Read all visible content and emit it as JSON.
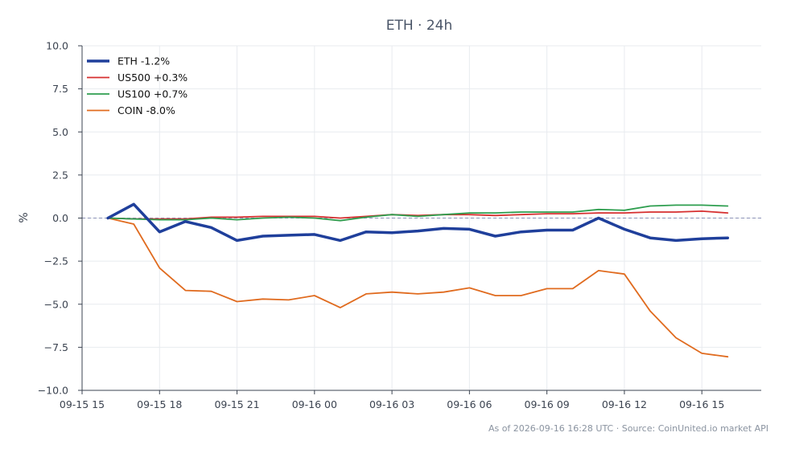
{
  "chart_data": {
    "type": "line",
    "title": "ETH · 24h",
    "ylabel": "%",
    "xlabel": "",
    "ylim": [
      -10,
      10
    ],
    "yticks": [
      10,
      7.5,
      5,
      2.5,
      0,
      -2.5,
      -5,
      -7.5,
      -10
    ],
    "ytick_labels": [
      "10.0",
      "7.5",
      "5.0",
      "2.5",
      "0.0",
      "−2.5",
      "−5.0",
      "−7.5",
      "−10.0"
    ],
    "xlim": [
      -1,
      25.3
    ],
    "xticks": [
      -1,
      2,
      5,
      8,
      11,
      14,
      17,
      20,
      23
    ],
    "xtick_labels": [
      "09-15 15",
      "09-15 18",
      "09-15 21",
      "09-16 00",
      "09-16 03",
      "09-16 06",
      "09-16 09",
      "09-16 12",
      "09-16 15"
    ],
    "x": [
      0,
      1,
      2,
      3,
      4,
      5,
      6,
      7,
      8,
      9,
      10,
      11,
      12,
      13,
      14,
      15,
      16,
      17,
      18,
      19,
      20,
      21,
      22,
      23,
      24
    ],
    "grid": true,
    "zero_line": true,
    "legend_position": "top-left",
    "series": [
      {
        "name": "ETH -1.2%",
        "color": "#1f3f9b",
        "width": 3.5,
        "values": [
          0.0,
          0.8,
          -0.8,
          -0.2,
          -0.55,
          -1.3,
          -1.05,
          -1.0,
          -0.95,
          -1.3,
          -0.8,
          -0.85,
          -0.75,
          -0.6,
          -0.65,
          -1.05,
          -0.8,
          -0.7,
          -0.7,
          0.0,
          -0.65,
          -1.15,
          -1.3,
          -1.2,
          -1.15
        ]
      },
      {
        "name": "US500 +0.3%",
        "color": "#d62f2f",
        "width": 1.8,
        "values": [
          0.0,
          -0.05,
          -0.05,
          -0.05,
          0.05,
          0.05,
          0.1,
          0.1,
          0.1,
          0.0,
          0.1,
          0.2,
          0.15,
          0.2,
          0.2,
          0.15,
          0.2,
          0.25,
          0.25,
          0.3,
          0.3,
          0.35,
          0.35,
          0.4,
          0.3
        ]
      },
      {
        "name": "US100 +0.7%",
        "color": "#2e9e4f",
        "width": 1.8,
        "values": [
          0.0,
          -0.05,
          -0.1,
          -0.1,
          0.0,
          -0.1,
          0.0,
          0.05,
          0.0,
          -0.15,
          0.05,
          0.2,
          0.1,
          0.2,
          0.3,
          0.3,
          0.35,
          0.35,
          0.35,
          0.5,
          0.45,
          0.7,
          0.75,
          0.75,
          0.7
        ]
      },
      {
        "name": "COIN -8.0%",
        "color": "#e06b1f",
        "width": 1.8,
        "values": [
          0.0,
          -0.35,
          -2.9,
          -4.2,
          -4.25,
          -4.85,
          -4.7,
          -4.75,
          -4.5,
          -5.2,
          -4.4,
          -4.3,
          -4.4,
          -4.3,
          -4.05,
          -4.5,
          -4.5,
          -4.1,
          -4.1,
          -3.05,
          -3.25,
          -5.4,
          -6.95,
          -7.85,
          -8.05
        ]
      }
    ],
    "footer": "As of 2026-09-16 16:28 UTC · Source: CoinUnited.io market API"
  }
}
